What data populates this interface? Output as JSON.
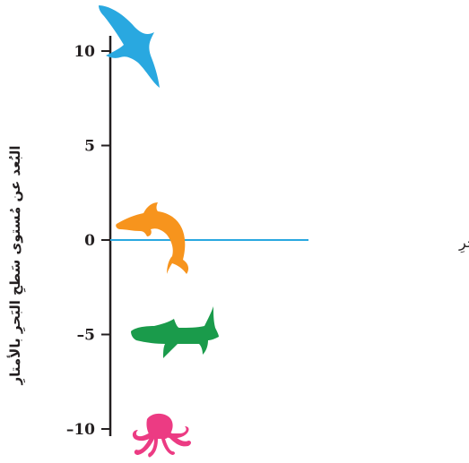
{
  "axis": {
    "title": "البُعد عن مُستوى سَطحِ البَحرِ بالأمتارِ",
    "ticks": [
      {
        "value": 10,
        "label": "10"
      },
      {
        "value": 5,
        "label": "5"
      },
      {
        "value": 0,
        "label": "0"
      },
      {
        "value": -5,
        "label": "–5"
      },
      {
        "value": -10,
        "label": "–10"
      }
    ],
    "range": [
      -10,
      10
    ]
  },
  "sea_level": {
    "label": "مُستَوى سَطحِ البَحرِ",
    "value": 0,
    "color": "#29a8e0"
  },
  "animals": [
    {
      "name": "seagull-icon",
      "elevation": 10,
      "color": "#29a8e0"
    },
    {
      "name": "dolphin-icon",
      "elevation": 0,
      "color": "#f7941d"
    },
    {
      "name": "shark-icon",
      "elevation": -5,
      "color": "#1a9b4b"
    },
    {
      "name": "octopus-icon",
      "elevation": -10,
      "color": "#ec3b83"
    }
  ],
  "colors": {
    "axis": "#231f20"
  }
}
